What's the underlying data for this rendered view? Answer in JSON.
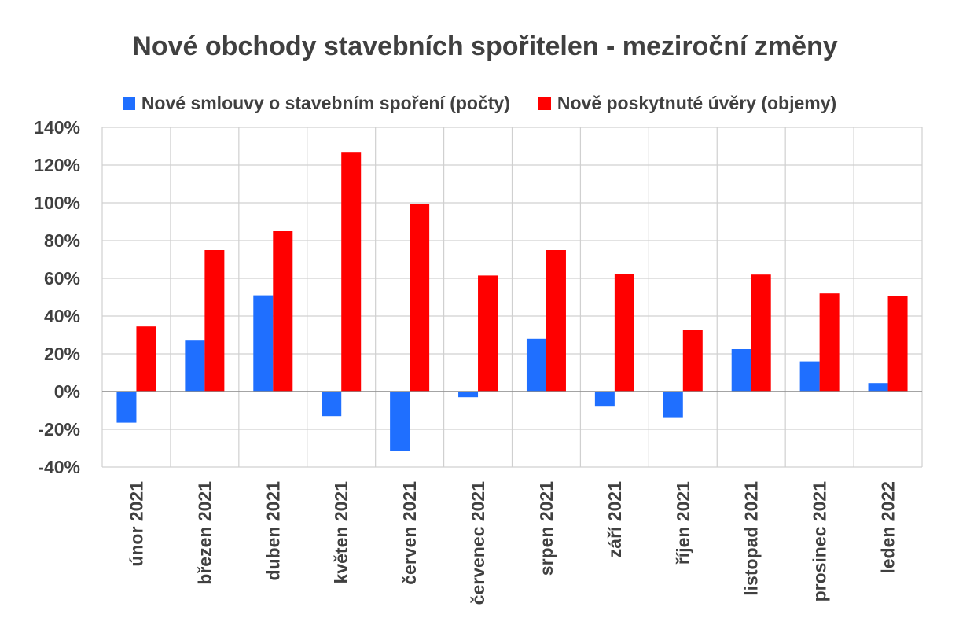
{
  "chart_data": {
    "type": "bar",
    "title": "Nové obchody stavebních spořitelen - meziroční změny",
    "xlabel": "",
    "ylabel": "",
    "categories": [
      "únor 2021",
      "březen 2021",
      "duben 2021",
      "květen 2021",
      "červen 2021",
      "červenec 2021",
      "srpen 2021",
      "září 2021",
      "říjen 2021",
      "listopad 2021",
      "prosinec 2021",
      "leden 2022"
    ],
    "series": [
      {
        "name": "Nové smlouvy o stavebním spoření (počty)",
        "color": "#1F6FFF",
        "values": [
          -16.5,
          27,
          51,
          -13,
          -31.5,
          -3,
          28,
          -8,
          -14,
          22.5,
          16,
          4.5
        ]
      },
      {
        "name": "Nově poskytnuté úvěry (objemy)",
        "color": "#FF0000",
        "values": [
          34.5,
          75,
          85,
          127,
          99.5,
          61.5,
          75,
          62.5,
          32.5,
          62,
          52,
          50.5
        ]
      }
    ],
    "ylim": [
      -40,
      140
    ],
    "yticks": [
      -40,
      -20,
      0,
      20,
      40,
      60,
      80,
      100,
      120,
      140
    ],
    "ytick_format": "percent",
    "grid": true,
    "legend_position": "top"
  }
}
